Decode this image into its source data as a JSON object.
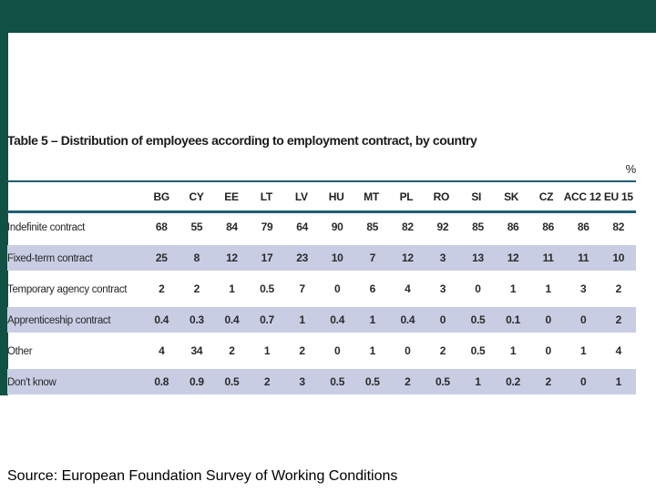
{
  "page": {
    "title": "Table 5 – Distribution of employees according to employment contract, by country",
    "percent_label": "%",
    "source": "Source: European Foundation Survey of Working Conditions"
  },
  "chart_data": {
    "type": "table",
    "title": "Table 5 – Distribution of employees according to employment contract, by country",
    "unit": "%",
    "columns": [
      "BG",
      "CY",
      "EE",
      "LT",
      "LV",
      "HU",
      "MT",
      "PL",
      "RO",
      "SI",
      "SK",
      "CZ",
      "ACC 12",
      "EU 15"
    ],
    "rows": [
      {
        "label": "Indefinite contract",
        "values": [
          68,
          55,
          84,
          79,
          64,
          90,
          85,
          82,
          92,
          85,
          86,
          86,
          86,
          82
        ]
      },
      {
        "label": "Fixed-term contract",
        "values": [
          25,
          8,
          12,
          17,
          23,
          10,
          7,
          12,
          3,
          13,
          12,
          11,
          11,
          10
        ]
      },
      {
        "label": "Temporary agency contract",
        "values": [
          2,
          2,
          1,
          0.5,
          7,
          0,
          6,
          4,
          3,
          0,
          1,
          1,
          3,
          2
        ]
      },
      {
        "label": "Apprenticeship contract",
        "values": [
          0.4,
          0.3,
          0.4,
          0.7,
          1,
          0.4,
          1,
          0.4,
          0,
          0.5,
          0.1,
          0,
          0,
          2
        ]
      },
      {
        "label": "Other",
        "values": [
          4,
          34,
          2,
          1,
          2,
          0,
          1,
          0,
          2,
          0.5,
          1,
          0,
          1,
          4
        ]
      },
      {
        "label": "Don't know",
        "values": [
          0.8,
          0.9,
          0.5,
          2,
          3,
          0.5,
          0.5,
          2,
          0.5,
          1,
          0.2,
          2,
          0,
          1
        ]
      }
    ],
    "layout": {
      "striped_rows": [
        1,
        3,
        5
      ],
      "stripe_color": "#c9cde4",
      "rule_color": "#205d75",
      "accent_bar_color": "#115044"
    }
  }
}
